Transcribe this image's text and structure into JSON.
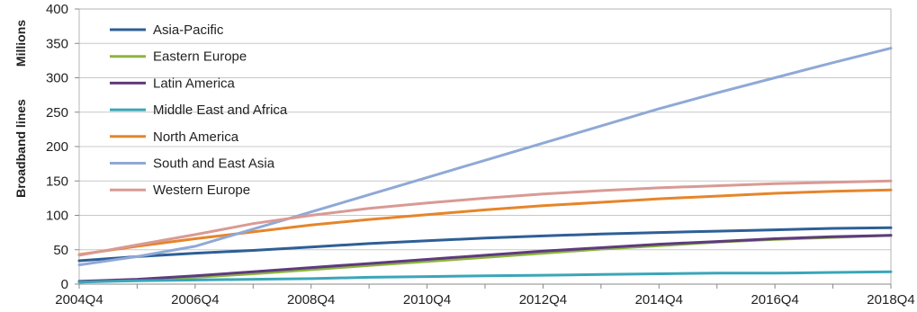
{
  "chart_data": {
    "type": "line",
    "title": "",
    "xlabel": "",
    "ylabel": "Broadband lines",
    "y_unit": "Millions",
    "ylim": [
      0,
      400
    ],
    "yticks": [
      0,
      50,
      100,
      150,
      200,
      250,
      300,
      350,
      400
    ],
    "x_start": "2004Q4",
    "x_end": "2018Q4",
    "x": [
      "2004Q4",
      "2005Q4",
      "2006Q4",
      "2007Q4",
      "2008Q4",
      "2009Q4",
      "2010Q4",
      "2011Q4",
      "2012Q4",
      "2013Q4",
      "2014Q4",
      "2015Q4",
      "2016Q4",
      "2017Q4",
      "2018Q4"
    ],
    "xticks": [
      "2004Q4",
      "2006Q4",
      "2008Q4",
      "2010Q4",
      "2012Q4",
      "2014Q4",
      "2016Q4",
      "2018Q4"
    ],
    "grid": "horizontal",
    "legend_position": "top-left",
    "series": [
      {
        "name": "Asia-Pacific",
        "color": "#2e5f96",
        "values": [
          34,
          40,
          45,
          49,
          54,
          59,
          63,
          67,
          70,
          73,
          75,
          77,
          79,
          81,
          82
        ]
      },
      {
        "name": "Eastern Europe",
        "color": "#8db53c",
        "values": [
          3,
          6,
          10,
          15,
          21,
          27,
          33,
          39,
          45,
          51,
          56,
          61,
          65,
          68,
          71
        ]
      },
      {
        "name": "Latin America",
        "color": "#5e3b7d",
        "values": [
          4,
          7,
          12,
          18,
          24,
          30,
          36,
          42,
          48,
          53,
          58,
          62,
          66,
          69,
          71
        ]
      },
      {
        "name": "Middle East and Africa",
        "color": "#3aa6b8",
        "values": [
          3,
          5,
          6,
          7,
          8,
          10,
          11,
          12,
          13,
          14,
          15,
          16,
          16,
          17,
          18
        ]
      },
      {
        "name": "North America",
        "color": "#e6852a",
        "values": [
          43,
          55,
          66,
          76,
          86,
          94,
          101,
          108,
          114,
          119,
          124,
          128,
          132,
          135,
          137
        ]
      },
      {
        "name": "South and East Asia",
        "color": "#8fa9d6",
        "values": [
          28,
          40,
          55,
          80,
          105,
          130,
          155,
          180,
          205,
          230,
          255,
          278,
          300,
          322,
          343
        ]
      },
      {
        "name": "Western Europe",
        "color": "#d99a94",
        "values": [
          42,
          57,
          72,
          88,
          100,
          110,
          118,
          125,
          131,
          136,
          140,
          143,
          146,
          148,
          150
        ]
      }
    ]
  }
}
